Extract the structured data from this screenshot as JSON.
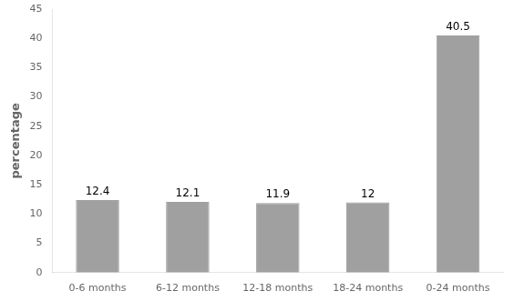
{
  "chart_data": {
    "type": "bar",
    "ylabel": "percentage",
    "categories": [
      "0-6 months",
      "6-12 months",
      "12-18 months",
      "18-24 months",
      "0-24 months"
    ],
    "values": [
      12.4,
      12.1,
      11.9,
      12.0,
      40.5
    ],
    "value_labels": [
      "12.4",
      "12.1",
      "11.9",
      "12",
      "40.5"
    ],
    "data_labels": true,
    "color": "#a0a0a0",
    "ylim": [
      0,
      45
    ],
    "yticks": [
      0,
      5,
      10,
      15,
      20,
      25,
      30,
      35,
      40,
      45
    ],
    "grid": false
  }
}
